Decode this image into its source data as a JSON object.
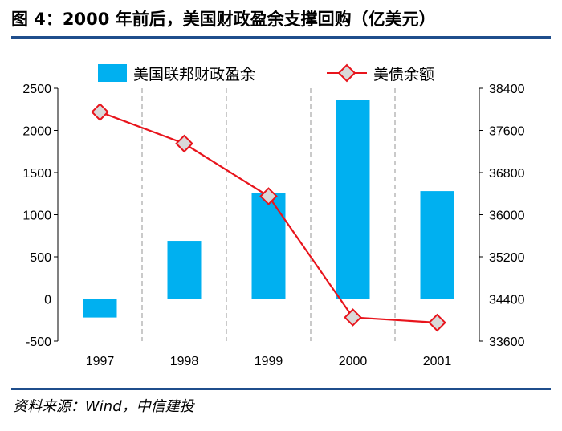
{
  "title": "图 4：2000 年前后，美国财政盈余支撑回购（亿美元）",
  "source": "资料来源：Wind，中信建投",
  "colors": {
    "bar": "#00b0f0",
    "line": "#e8141c",
    "marker_fill": "#d9d9d9",
    "rule": "#1f4e8c"
  },
  "chart_data": {
    "type": "bar+line",
    "categories": [
      "1997",
      "1998",
      "1999",
      "2000",
      "2001"
    ],
    "series": [
      {
        "name": "美国联邦财政盈余",
        "type": "bar",
        "axis": "left",
        "values": [
          -220,
          690,
          1260,
          2360,
          1280
        ]
      },
      {
        "name": "美债余额",
        "type": "line",
        "axis": "right",
        "values": [
          37950,
          37350,
          36350,
          34050,
          33950
        ]
      }
    ],
    "left_axis": {
      "min": -500,
      "max": 2500,
      "ticks": [
        "-500",
        "0",
        "500",
        "1000",
        "1500",
        "2000",
        "2500"
      ]
    },
    "right_axis": {
      "min": 33600,
      "max": 38400,
      "ticks": [
        "33600",
        "34400",
        "35200",
        "36000",
        "36800",
        "37600",
        "38400"
      ]
    },
    "legend_position": "top",
    "grid": "vertical-dashed"
  }
}
